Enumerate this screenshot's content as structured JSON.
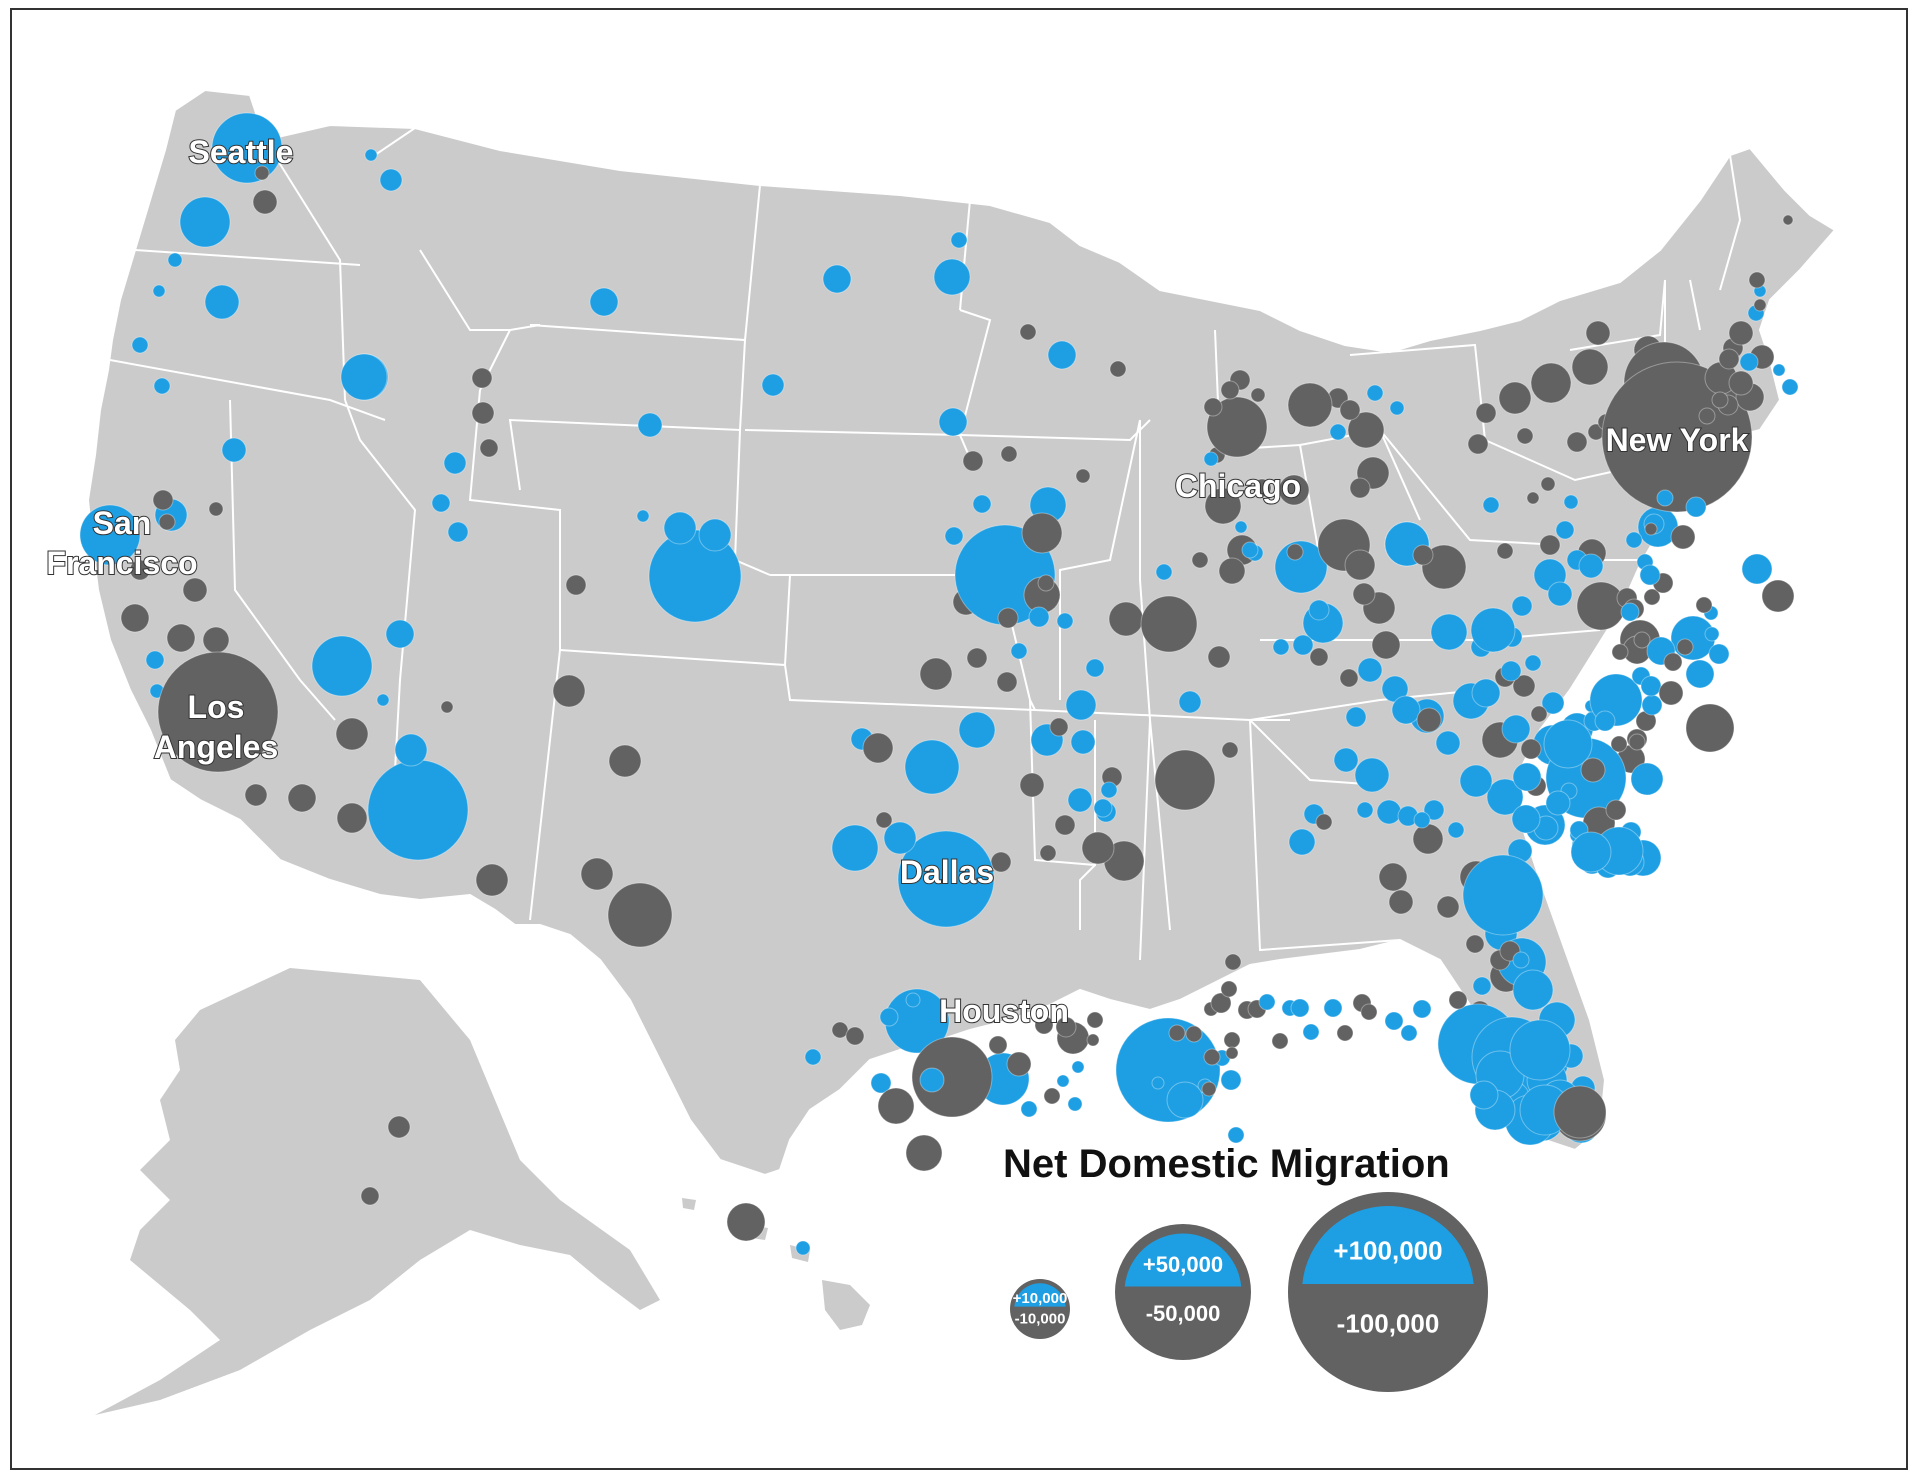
{
  "colors": {
    "land": "#cbcbcb",
    "state_border": "#ffffff",
    "gain": "#1e9fe3",
    "loss": "#626262",
    "frame": "#333333"
  },
  "map": {
    "city_labels": [
      {
        "id": "seattle",
        "lines": [
          "Seattle"
        ]
      },
      {
        "id": "san-francisco",
        "lines": [
          "San",
          "Francisco"
        ]
      },
      {
        "id": "los-angeles",
        "lines": [
          "Los",
          "Angeles"
        ]
      },
      {
        "id": "chicago",
        "lines": [
          "Chicago"
        ]
      },
      {
        "id": "new-york",
        "lines": [
          "New York"
        ]
      },
      {
        "id": "dallas",
        "lines": [
          "Dallas"
        ]
      },
      {
        "id": "houston",
        "lines": [
          "Houston"
        ]
      }
    ]
  },
  "legend": {
    "title": "Net Domestic Migration",
    "items": [
      {
        "gain_label": "+10,000",
        "loss_label": "-10,000"
      },
      {
        "gain_label": "+50,000",
        "loss_label": "-50,000"
      },
      {
        "gain_label": "+100,000",
        "loss_label": "-100,000"
      }
    ]
  }
}
